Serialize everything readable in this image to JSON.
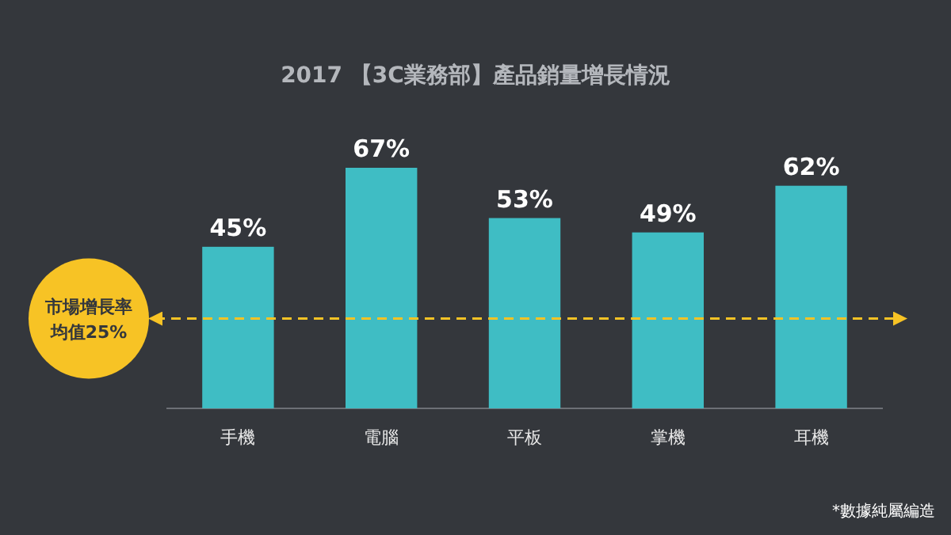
{
  "chart_data": {
    "type": "bar",
    "title": "2017 【3C業務部】產品銷量增長情況",
    "categories": [
      "手機",
      "電腦",
      "平板",
      "掌機",
      "耳機"
    ],
    "values": [
      45,
      67,
      53,
      49,
      62
    ],
    "value_labels": [
      "45%",
      "67%",
      "53%",
      "49%",
      "62%"
    ],
    "color": "#3fbdc4",
    "ref_lines": [
      {
        "axis": "y",
        "value": 25,
        "label": "市場增長率均值25%",
        "color": "#f7c325",
        "line_style": "dashed"
      }
    ],
    "annotations": [
      "*數據純屬編造"
    ]
  }
}
